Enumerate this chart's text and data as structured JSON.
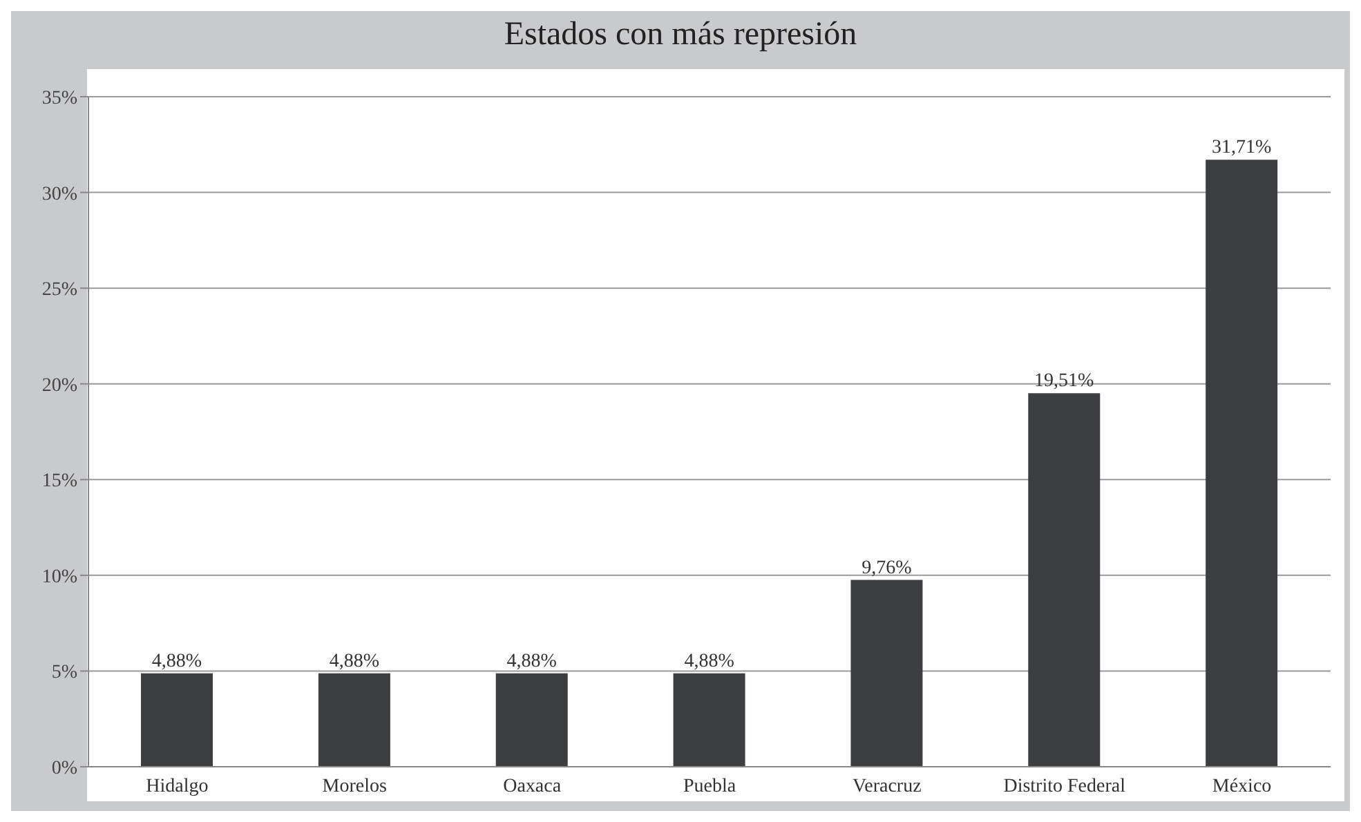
{
  "chart_data": {
    "type": "bar",
    "title": "Estados con más represión",
    "categories": [
      "Hidalgo",
      "Morelos",
      "Oaxaca",
      "Puebla",
      "Veracruz",
      "Distrito Federal",
      "México"
    ],
    "values": [
      4.88,
      4.88,
      4.88,
      4.88,
      9.76,
      19.51,
      31.71
    ],
    "color": "#3d3e40",
    "value_labels": [
      "4,88%",
      "4,88%",
      "4,88%",
      "4,88%",
      "9,76%",
      "19,51%",
      "31,71%"
    ],
    "ylim": [
      0,
      35
    ],
    "yticks": [
      {
        "value": 0,
        "label": "0%"
      },
      {
        "value": 5,
        "label": "5%"
      },
      {
        "value": 10,
        "label": "10%"
      },
      {
        "value": 15,
        "label": "15%"
      },
      {
        "value": 20,
        "label": "20%"
      },
      {
        "value": 25,
        "label": "25%"
      },
      {
        "value": 30,
        "label": "30%"
      },
      {
        "value": 35,
        "label": "35%"
      }
    ],
    "grid": "y",
    "legend": false
  }
}
